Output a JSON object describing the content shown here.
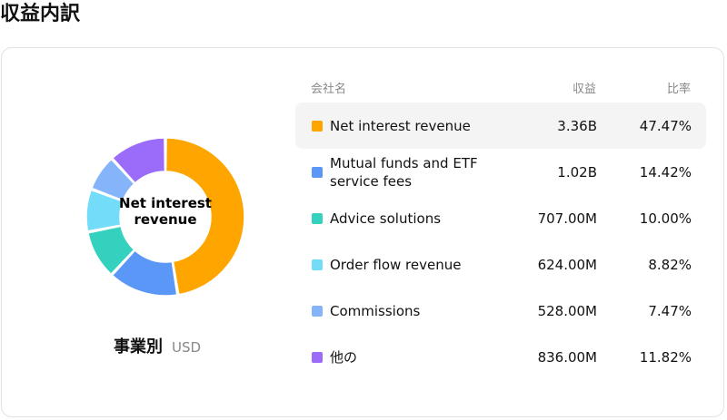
{
  "page": {
    "title": "収益内訳"
  },
  "chart_data": {
    "type": "pie",
    "center_label": "Net interest revenue",
    "subtitle": "事業別",
    "currency": "USD",
    "table_headers": {
      "name": "会社名",
      "revenue": "収益",
      "ratio": "比率"
    },
    "slices": [
      {
        "name": "Net interest revenue",
        "revenue": "3.36B",
        "ratio": "47.47%",
        "value": 47.47,
        "color": "#FFA500"
      },
      {
        "name": "Mutual funds and ETF service fees",
        "revenue": "1.02B",
        "ratio": "14.42%",
        "value": 14.42,
        "color": "#5B97F7"
      },
      {
        "name": "Advice solutions",
        "revenue": "707.00M",
        "ratio": "10.00%",
        "value": 10.0,
        "color": "#34D1BF"
      },
      {
        "name": "Order flow revenue",
        "revenue": "624.00M",
        "ratio": "8.82%",
        "value": 8.82,
        "color": "#73DDF9"
      },
      {
        "name": "Commissions",
        "revenue": "528.00M",
        "ratio": "7.47%",
        "value": 7.47,
        "color": "#86B4FA"
      },
      {
        "name": "他の",
        "revenue": "836.00M",
        "ratio": "11.82%",
        "value": 11.82,
        "color": "#9B6CFA"
      }
    ]
  }
}
